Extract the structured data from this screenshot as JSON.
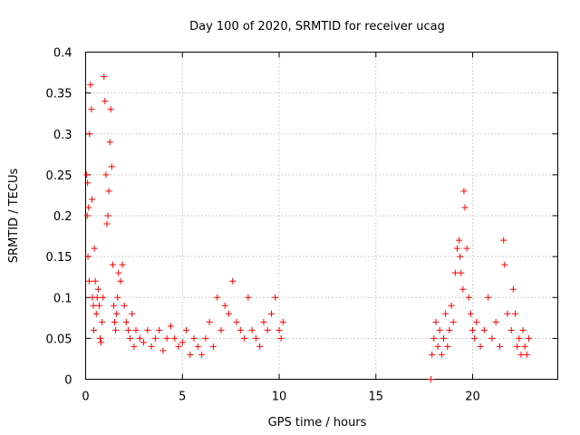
{
  "chart_data": {
    "type": "scatter",
    "title": "Day 100 of 2020, SRMTID for receiver ucag",
    "xlabel": "GPS time / hours",
    "ylabel": "SRMTID / TECUs",
    "xlim": [
      0,
      24.4
    ],
    "ylim": [
      0,
      0.4
    ],
    "xticks": [
      0,
      5,
      10,
      15,
      20
    ],
    "xtick_labels": [
      "0",
      "5",
      "10",
      "15",
      "20"
    ],
    "yticks": [
      0,
      0.05,
      0.1,
      0.15,
      0.2,
      0.25,
      0.3,
      0.35,
      0.4
    ],
    "ytick_labels": [
      "0",
      "0.05",
      "0.1",
      "0.15",
      "0.2",
      "0.25",
      "0.3",
      "0.35",
      "0.4"
    ],
    "grid": true,
    "marker": "+",
    "color": "#ff0000",
    "series": [
      {
        "name": "SRMTID",
        "x": [
          0.05,
          0.08,
          0.1,
          0.12,
          0.15,
          0.18,
          0.2,
          0.25,
          0.3,
          0.33,
          0.35,
          0.4,
          0.42,
          0.45,
          0.5,
          0.55,
          0.6,
          0.65,
          0.7,
          0.75,
          0.8,
          0.85,
          0.9,
          0.95,
          1.0,
          1.05,
          1.1,
          1.15,
          1.2,
          1.25,
          1.3,
          1.35,
          1.4,
          1.45,
          1.5,
          1.55,
          1.6,
          1.65,
          1.7,
          1.8,
          1.9,
          2.0,
          2.1,
          2.2,
          2.3,
          2.4,
          2.5,
          2.6,
          2.8,
          3.0,
          3.2,
          3.4,
          3.6,
          3.8,
          4.0,
          4.2,
          4.4,
          4.6,
          4.8,
          5.0,
          5.2,
          5.4,
          5.6,
          5.8,
          6.0,
          6.2,
          6.4,
          6.6,
          6.8,
          7.0,
          7.2,
          7.4,
          7.6,
          7.8,
          8.0,
          8.2,
          8.4,
          8.6,
          8.8,
          9.0,
          9.2,
          9.4,
          9.6,
          9.8,
          10.0,
          10.1,
          10.2,
          17.85,
          17.9,
          18.0,
          18.1,
          18.2,
          18.3,
          18.4,
          18.5,
          18.6,
          18.7,
          18.8,
          18.9,
          19.0,
          19.1,
          19.2,
          19.3,
          19.35,
          19.4,
          19.5,
          19.55,
          19.6,
          19.7,
          19.8,
          19.9,
          20.0,
          20.1,
          20.2,
          20.4,
          20.6,
          20.8,
          21.0,
          21.2,
          21.4,
          21.6,
          21.65,
          21.8,
          22.0,
          22.1,
          22.2,
          22.3,
          22.4,
          22.5,
          22.6,
          22.7,
          22.8,
          22.9
        ],
        "y": [
          0.25,
          0.2,
          0.24,
          0.15,
          0.21,
          0.12,
          0.3,
          0.36,
          0.33,
          0.22,
          0.1,
          0.09,
          0.06,
          0.16,
          0.12,
          0.08,
          0.1,
          0.11,
          0.09,
          0.05,
          0.045,
          0.07,
          0.1,
          0.37,
          0.34,
          0.25,
          0.19,
          0.2,
          0.23,
          0.29,
          0.33,
          0.26,
          0.14,
          0.09,
          0.07,
          0.06,
          0.08,
          0.1,
          0.13,
          0.12,
          0.14,
          0.09,
          0.07,
          0.06,
          0.05,
          0.08,
          0.04,
          0.06,
          0.05,
          0.045,
          0.06,
          0.04,
          0.05,
          0.06,
          0.035,
          0.05,
          0.065,
          0.05,
          0.04,
          0.045,
          0.06,
          0.03,
          0.05,
          0.04,
          0.03,
          0.05,
          0.07,
          0.04,
          0.1,
          0.06,
          0.09,
          0.08,
          0.12,
          0.07,
          0.06,
          0.05,
          0.1,
          0.06,
          0.05,
          0.04,
          0.07,
          0.06,
          0.08,
          0.1,
          0.06,
          0.05,
          0.07,
          0.0,
          0.03,
          0.05,
          0.07,
          0.04,
          0.06,
          0.03,
          0.05,
          0.08,
          0.04,
          0.06,
          0.09,
          0.07,
          0.13,
          0.16,
          0.17,
          0.15,
          0.13,
          0.11,
          0.23,
          0.21,
          0.16,
          0.1,
          0.08,
          0.06,
          0.05,
          0.07,
          0.04,
          0.06,
          0.1,
          0.05,
          0.07,
          0.04,
          0.17,
          0.14,
          0.08,
          0.06,
          0.11,
          0.08,
          0.04,
          0.05,
          0.03,
          0.06,
          0.04,
          0.03,
          0.05
        ]
      }
    ]
  }
}
